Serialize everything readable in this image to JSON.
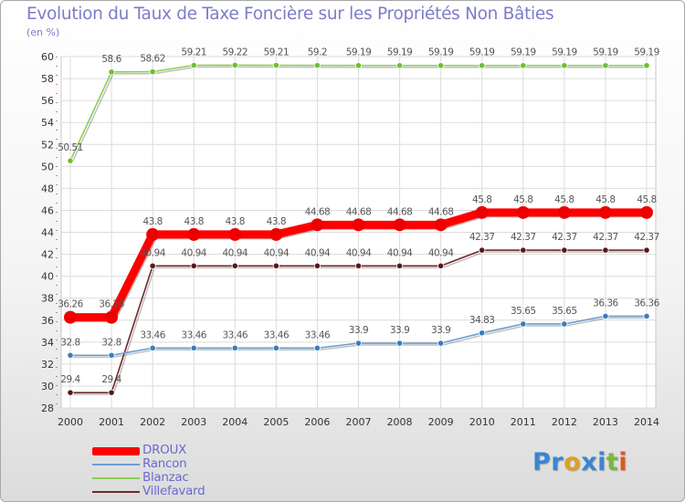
{
  "title": "Evolution du Taux de Taxe Foncière sur les Propriétés Non Bâties",
  "unit_label": "(en %)",
  "logo": {
    "letters": [
      "P",
      "r",
      "o",
      "x",
      "i",
      "t",
      "i"
    ],
    "colors": [
      "#3a84d4",
      "#3a84d4",
      "#e0a020",
      "#3a84d4",
      "#3a84d4",
      "#7cb83a",
      "#e05820"
    ]
  },
  "chart_data": {
    "type": "line",
    "title": "Evolution du Taux de Taxe Foncière sur les Propriétés Non Bâties",
    "ylabel": "(en %)",
    "xlabel": "",
    "ylim": [
      28,
      60
    ],
    "y_ticks": [
      28,
      30,
      32,
      34,
      36,
      38,
      40,
      42,
      44,
      46,
      48,
      50,
      52,
      54,
      56,
      58,
      60
    ],
    "x": [
      "2000",
      "2001",
      "2002",
      "2003",
      "2004",
      "2005",
      "2006",
      "2007",
      "2008",
      "2009",
      "2010",
      "2011",
      "2012",
      "2013",
      "2014"
    ],
    "grid": true,
    "legend_position": "bottom-left",
    "series": [
      {
        "name": "Blanzac",
        "color": "#88d050",
        "marker_color": "#6cc030",
        "style": "thin",
        "values": [
          50.51,
          58.6,
          58.62,
          59.21,
          59.22,
          59.21,
          59.2,
          59.19,
          59.19,
          59.19,
          59.19,
          59.19,
          59.19,
          59.19,
          59.19
        ],
        "labels": [
          "50.51",
          "58.6",
          "58.62",
          "59.21",
          "59.22",
          "59.21",
          "59.2",
          "59.19",
          "59.19",
          "59.19",
          "59.19",
          "59.19",
          "59.19",
          "59.19",
          "59.19"
        ]
      },
      {
        "name": "DROUX",
        "color": "#ff0000",
        "marker_color": "#ee0000",
        "style": "thick",
        "values": [
          36.26,
          36.26,
          43.8,
          43.8,
          43.8,
          43.8,
          44.68,
          44.68,
          44.68,
          44.68,
          45.8,
          45.8,
          45.8,
          45.8,
          45.8
        ],
        "labels": [
          "36.26",
          "36.26",
          "43.8",
          "43.8",
          "43.8",
          "43.8",
          "44.68",
          "44.68",
          "44.68",
          "44.68",
          "45.8",
          "45.8",
          "45.8",
          "45.8",
          "45.8"
        ]
      },
      {
        "name": "Villefavard",
        "color": "#6e2a2a",
        "marker_color": "#5a1818",
        "style": "thin",
        "values": [
          29.4,
          29.4,
          40.94,
          40.94,
          40.94,
          40.94,
          40.94,
          40.94,
          40.94,
          40.94,
          42.37,
          42.37,
          42.37,
          42.37,
          42.37
        ],
        "labels": [
          "29.4",
          "29.4",
          "40.94",
          "40.94",
          "40.94",
          "40.94",
          "40.94",
          "40.94",
          "40.94",
          "40.94",
          "42.37",
          "42.37",
          "42.37",
          "42.37",
          "42.37"
        ]
      },
      {
        "name": "Rancon",
        "color": "#6a9ed0",
        "marker_color": "#3a7cc0",
        "style": "thin",
        "values": [
          32.8,
          32.8,
          33.46,
          33.46,
          33.46,
          33.46,
          33.46,
          33.9,
          33.9,
          33.9,
          34.83,
          35.65,
          35.65,
          36.36,
          36.36
        ],
        "labels": [
          "32.8",
          "32.8",
          "33.46",
          "33.46",
          "33.46",
          "33.46",
          "33.46",
          "33.9",
          "33.9",
          "33.9",
          "34.83",
          "35.65",
          "35.65",
          "36.36",
          "36.36"
        ]
      }
    ],
    "legend": [
      {
        "name": "DROUX",
        "color": "#ff0000",
        "style": "thick"
      },
      {
        "name": "Rancon",
        "color": "#6a9ed0",
        "style": "thin"
      },
      {
        "name": "Blanzac",
        "color": "#88d050",
        "style": "thin"
      },
      {
        "name": "Villefavard",
        "color": "#6e2a2a",
        "style": "thin"
      }
    ]
  }
}
